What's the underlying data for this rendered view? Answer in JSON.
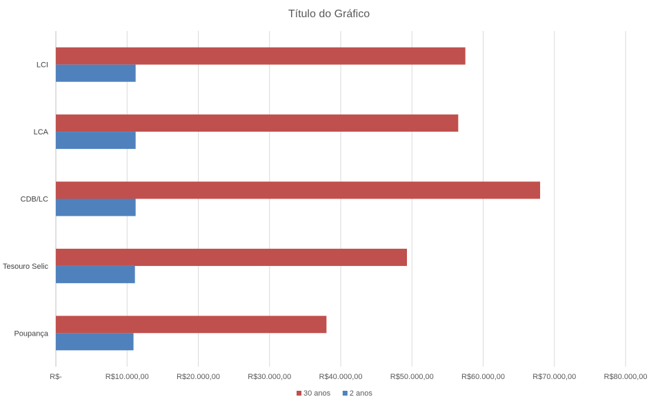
{
  "chart_data": {
    "type": "bar",
    "orientation": "horizontal",
    "title": "Título do Gráfico",
    "categories": [
      "LCI",
      "LCA",
      "CDB/LC",
      "Tesouro Selic",
      "Poupança"
    ],
    "series": [
      {
        "name": "30 anos",
        "color": "#c0504d",
        "values": [
          57500,
          56500,
          68000,
          49300,
          38000
        ]
      },
      {
        "name": "2 anos",
        "color": "#4f81bd",
        "values": [
          11200,
          11200,
          11200,
          11100,
          10900
        ]
      }
    ],
    "xlim": [
      0,
      80000
    ],
    "x_ticks": [
      0,
      10000,
      20000,
      30000,
      40000,
      50000,
      60000,
      70000,
      80000
    ],
    "x_tick_labels": [
      "R$-",
      "R$10.000,00",
      "R$20.000,00",
      "R$30.000,00",
      "R$40.000,00",
      "R$50.000,00",
      "R$60.000,00",
      "R$70.000,00",
      "R$80.000,00"
    ],
    "grid": true,
    "legend": {
      "position": "bottom",
      "entries": [
        "30 anos",
        "2 anos"
      ]
    }
  }
}
